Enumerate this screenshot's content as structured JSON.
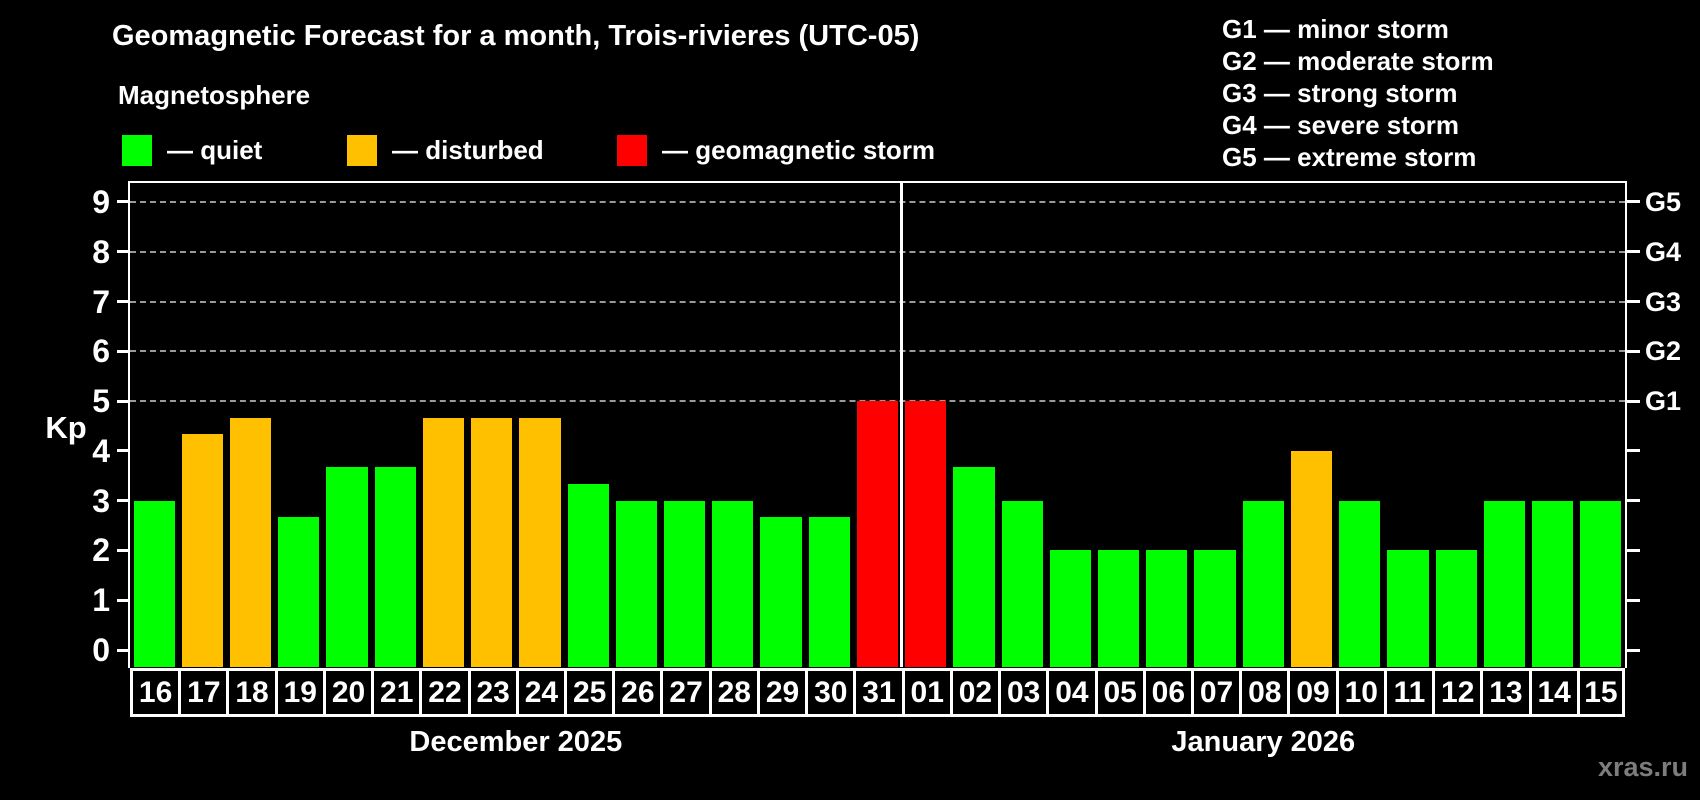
{
  "header": {
    "title": "Geomagnetic Forecast for a month, Trois-rivieres (UTC-05)",
    "subtitle": "Magnetosphere"
  },
  "legend": {
    "items": [
      {
        "status": "quiet",
        "label": "— quiet",
        "color": "#00ff00"
      },
      {
        "status": "disturbed",
        "label": "— disturbed",
        "color": "#ffc000"
      },
      {
        "status": "storm",
        "label": "— geomagnetic storm",
        "color": "#ff0000"
      }
    ]
  },
  "g_legend": {
    "items": [
      "G1 — minor storm",
      "G2 — moderate storm",
      "G3 — strong storm",
      "G4 — severe storm",
      "G5 — extreme storm"
    ]
  },
  "footer": {
    "watermark": "xras.ru"
  },
  "chart_data": {
    "type": "bar",
    "title": "Geomagnetic Forecast for a month, Trois-rivieres (UTC-05)",
    "subtitle": "Magnetosphere",
    "xlabel": "",
    "ylabel": "Kp",
    "ylim": [
      0,
      9
    ],
    "yticks": [
      0,
      1,
      2,
      3,
      4,
      5,
      6,
      7,
      8,
      9
    ],
    "gridline_values": [
      5,
      6,
      7,
      8,
      9
    ],
    "grid_style": "dashed-gray-horizontal",
    "legend_position": "top-left",
    "right_axis_labels": [
      {
        "value": 5,
        "label": "G1"
      },
      {
        "value": 6,
        "label": "G2"
      },
      {
        "value": 7,
        "label": "G3"
      },
      {
        "value": 8,
        "label": "G4"
      },
      {
        "value": 9,
        "label": "G5"
      }
    ],
    "categories": [
      "16",
      "17",
      "18",
      "19",
      "20",
      "21",
      "22",
      "23",
      "24",
      "25",
      "26",
      "27",
      "28",
      "29",
      "30",
      "31",
      "01",
      "02",
      "03",
      "04",
      "05",
      "06",
      "07",
      "08",
      "09",
      "10",
      "11",
      "12",
      "13",
      "14",
      "15"
    ],
    "values": [
      3,
      4.33,
      4.67,
      2.67,
      3.67,
      3.67,
      4.67,
      4.67,
      4.67,
      3.33,
      3,
      3,
      3,
      2.67,
      2.67,
      5,
      5,
      3.67,
      3,
      2,
      2,
      2,
      2,
      3,
      4,
      3,
      2,
      2,
      3,
      3,
      3
    ],
    "statuses": [
      "quiet",
      "disturbed",
      "disturbed",
      "quiet",
      "quiet",
      "quiet",
      "disturbed",
      "disturbed",
      "disturbed",
      "quiet",
      "quiet",
      "quiet",
      "quiet",
      "quiet",
      "quiet",
      "storm",
      "storm",
      "quiet",
      "quiet",
      "quiet",
      "quiet",
      "quiet",
      "quiet",
      "quiet",
      "disturbed",
      "quiet",
      "quiet",
      "quiet",
      "quiet",
      "quiet",
      "quiet"
    ],
    "status_colors": {
      "quiet": "#00ff00",
      "disturbed": "#ffc000",
      "storm": "#ff0000"
    },
    "month_groups": [
      {
        "label": "December 2025",
        "start": 0,
        "count": 16
      },
      {
        "label": "January 2026",
        "start": 16,
        "count": 15
      }
    ]
  }
}
